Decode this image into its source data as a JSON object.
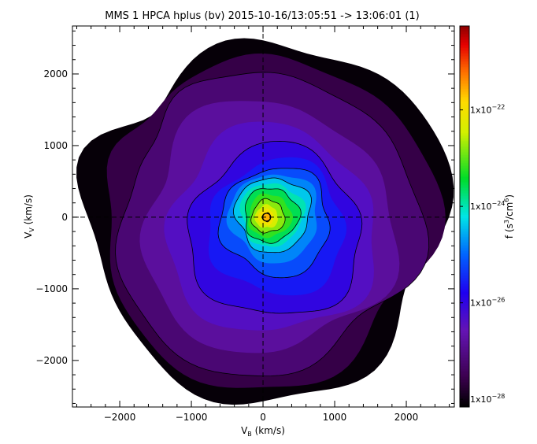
{
  "chart_data": {
    "type": "heatmap",
    "title": "MMS 1 HPCA hplus (bv) 2015-10-16/13:05:51 -> 13:06:01 (1)",
    "xlabel_main": "V",
    "xlabel_sub": "B",
    "xlabel_unit": " (km/s)",
    "ylabel_main": "V",
    "ylabel_sub": "V",
    "ylabel_unit": " (km/s)",
    "xlim": [
      -2660,
      2670
    ],
    "ylim": [
      -2650,
      2670
    ],
    "xticks": [
      -2000,
      -1000,
      0,
      1000,
      2000
    ],
    "yticks": [
      -2000,
      -1000,
      0,
      1000,
      2000
    ],
    "xtick_labels": [
      "−2000",
      "−1000",
      "0",
      "1000",
      "2000"
    ],
    "ytick_labels": [
      "−2000",
      "−1000",
      "0",
      "1000",
      "2000"
    ],
    "colorbar": {
      "label_main": "f (s",
      "label_sup1": "3",
      "label_mid": "/cm",
      "label_sup2": "6",
      "label_end": ")",
      "log_range": [
        -28.16,
        -20.26
      ],
      "ticks": [
        {
          "exp": -22,
          "base": "1x10",
          "sup": "−22"
        },
        {
          "exp": -24,
          "base": "1x10",
          "sup": "−24"
        },
        {
          "exp": -26,
          "base": "1x10",
          "sup": "−26"
        },
        {
          "exp": -28,
          "base": "1x10",
          "sup": "−28"
        }
      ]
    },
    "levels": [
      {
        "logf": -28.1,
        "center": [
          0,
          0
        ],
        "radius": 2520,
        "contour": false
      },
      {
        "logf": -27.6,
        "center": [
          0,
          -20
        ],
        "radius": 2330,
        "contour": false
      },
      {
        "logf": -27.2,
        "center": [
          0,
          -60
        ],
        "radius": 2120,
        "contour": true
      },
      {
        "logf": -26.8,
        "center": [
          60,
          -150
        ],
        "radius": 1750,
        "contour": false
      },
      {
        "logf": -26.4,
        "center": [
          120,
          -200
        ],
        "radius": 1450,
        "contour": false
      },
      {
        "logf": -26.0,
        "center": [
          170,
          -220
        ],
        "radius": 1200,
        "contour": true
      },
      {
        "logf": -25.6,
        "center": [
          200,
          -150
        ],
        "radius": 950,
        "contour": false
      },
      {
        "logf": -25.2,
        "center": [
          180,
          -60
        ],
        "radius": 760,
        "contour": true
      },
      {
        "logf": -24.8,
        "center": [
          160,
          0
        ],
        "radius": 620,
        "contour": false
      },
      {
        "logf": -24.4,
        "center": [
          140,
          40
        ],
        "radius": 520,
        "contour": true
      },
      {
        "logf": -24.0,
        "center": [
          120,
          40
        ],
        "radius": 440,
        "contour": false
      },
      {
        "logf": -23.6,
        "center": [
          110,
          30
        ],
        "radius": 380,
        "contour": true
      },
      {
        "logf": -23.2,
        "center": [
          90,
          20
        ],
        "radius": 300,
        "contour": false
      },
      {
        "logf": -22.8,
        "center": [
          70,
          10
        ],
        "radius": 230,
        "contour": true
      },
      {
        "logf": -22.4,
        "center": [
          50,
          5
        ],
        "radius": 160,
        "contour": false
      },
      {
        "logf": -22.0,
        "center": [
          40,
          0
        ],
        "radius": 110,
        "contour": false
      },
      {
        "logf": -21.6,
        "center": [
          50,
          0
        ],
        "radius": 60,
        "contour": true
      }
    ],
    "grid": false
  }
}
